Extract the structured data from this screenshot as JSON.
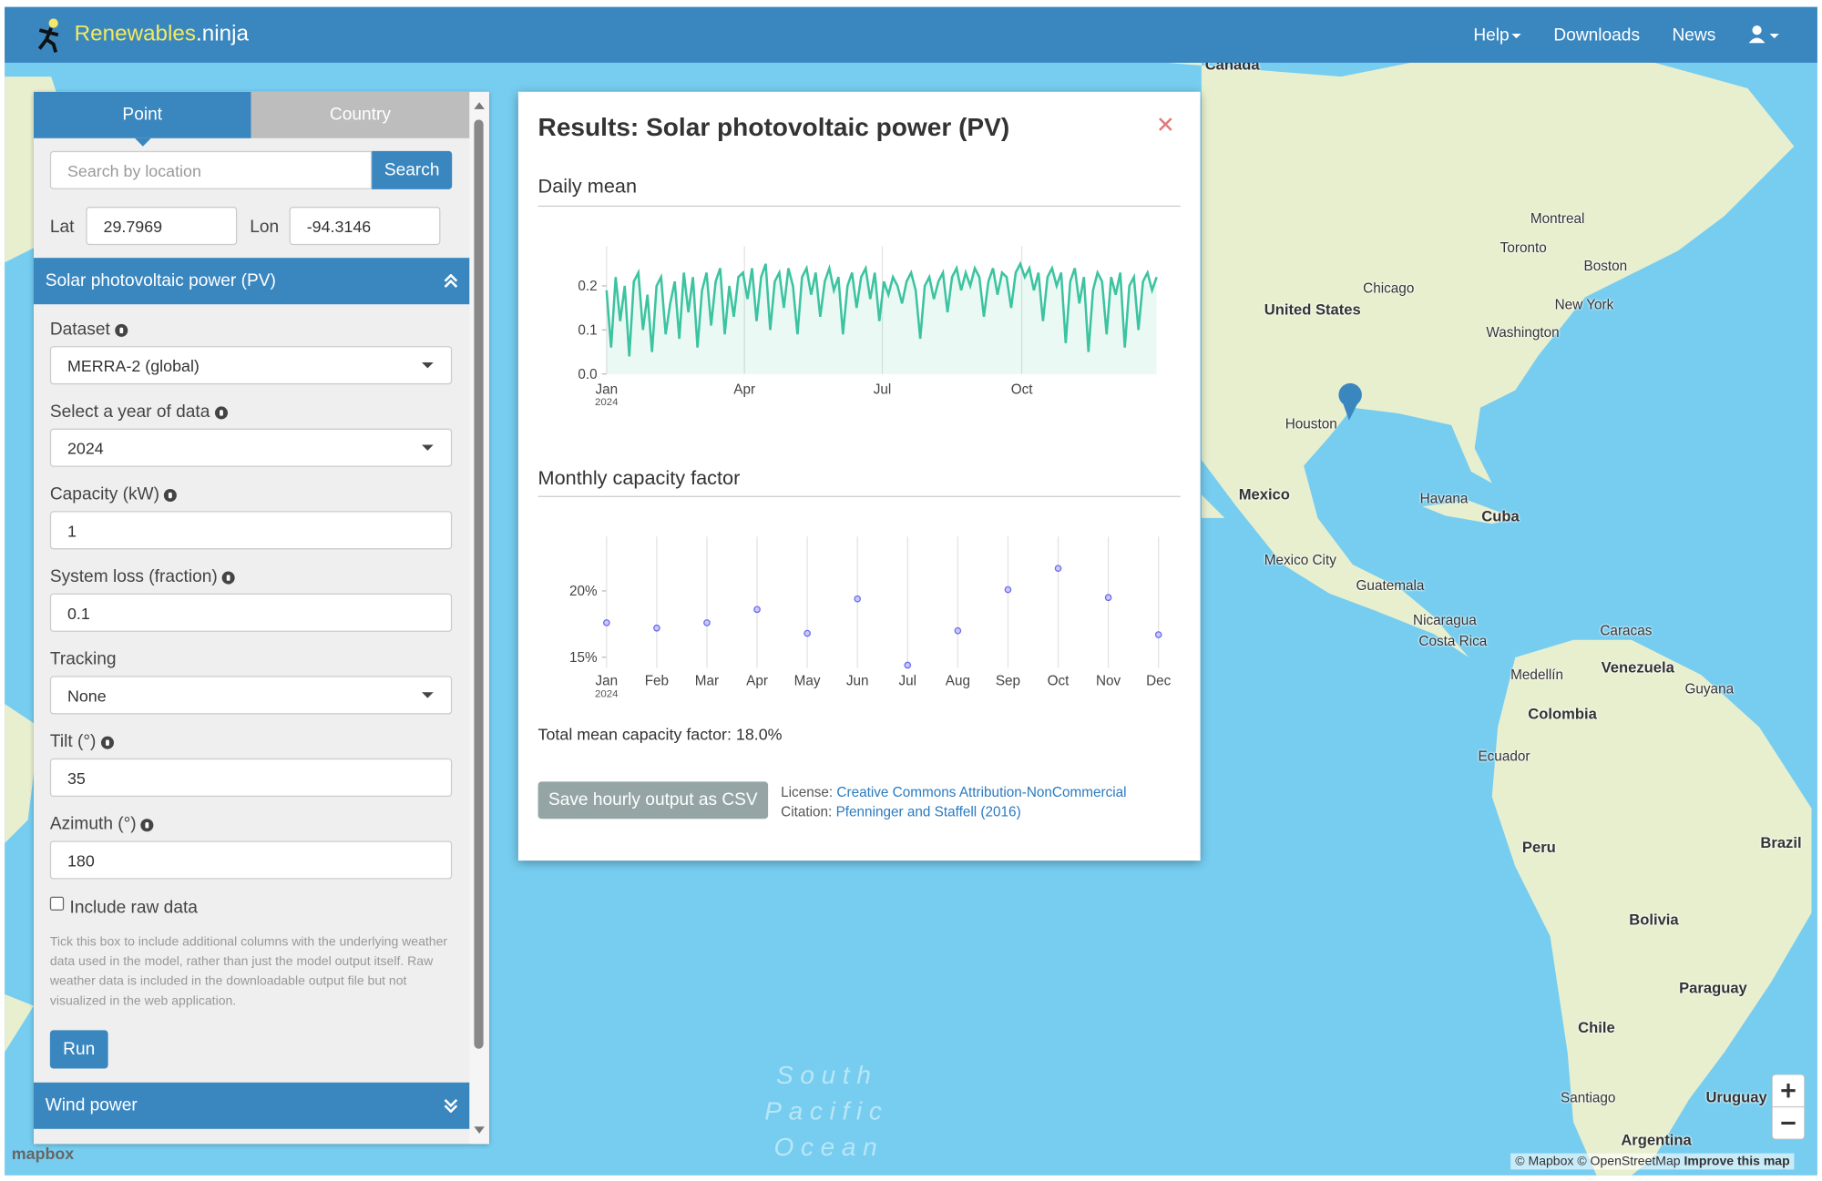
{
  "navbar": {
    "brand_main": "Renewables",
    "brand_suffix": ".ninja",
    "items": [
      "Help",
      "Downloads",
      "News"
    ]
  },
  "sidebar": {
    "tabs": [
      "Point",
      "Country"
    ],
    "search_placeholder": "Search by location",
    "search_button": "Search",
    "lat_label": "Lat",
    "lat": "29.7969",
    "lon_label": "Lon",
    "lon": "-94.3146",
    "section": "Solar photovoltaic power (PV)",
    "fields": [
      {
        "label": "Dataset",
        "value": "MERRA-2 (global)"
      },
      {
        "label": "Select a year of data",
        "value": "2024"
      },
      {
        "label": "Capacity (kW)",
        "value": "1"
      },
      {
        "label": "System loss (fraction)",
        "value": "0.1"
      },
      {
        "label": "Tracking",
        "value": "None"
      },
      {
        "label": "Tilt (°)",
        "value": "35"
      },
      {
        "label": "Azimuth (°)",
        "value": "180"
      }
    ],
    "raw_label": "Include raw data",
    "raw_help": "Tick this box to include additional columns with the underlying weather data used in the model, rather than just the model output itself. Raw weather data is included in the downloadable output file but not visualized in the web application.",
    "run_button": "Run",
    "next_section": "Wind power"
  },
  "results": {
    "title": "Results: Solar photovoltaic power (PV)",
    "total": "Total mean capacity factor: 18.0%",
    "save_button": "Save hourly output as CSV",
    "license_label": "License:",
    "license": "Creative Commons Attribution-NonCommercial",
    "citation_label": "Citation:",
    "citation": "Pfenninger and Staffell (2016)"
  },
  "chart_data": [
    {
      "type": "line",
      "title": "Daily mean",
      "color": "#3cc3a0",
      "x_sublabel": "2024",
      "x": [
        0,
        3,
        6,
        9,
        12,
        15,
        18,
        21,
        24,
        27,
        30,
        33,
        36,
        39,
        42,
        45,
        48,
        51,
        54,
        57,
        60,
        63,
        66,
        69,
        72,
        75,
        78,
        81,
        84,
        87,
        90,
        93,
        96,
        99,
        102,
        105,
        108,
        111,
        114,
        117,
        120,
        123,
        126,
        129,
        132,
        135,
        138,
        141,
        144,
        147,
        150,
        153,
        156,
        159,
        162,
        165,
        168,
        171,
        174,
        177,
        180,
        183,
        186,
        189,
        192,
        195,
        198,
        201,
        204,
        207,
        210,
        213,
        216,
        219,
        222,
        225,
        228,
        231,
        234,
        237,
        240,
        243,
        246,
        249,
        252,
        255,
        258,
        261,
        264,
        267,
        270,
        273,
        276,
        279,
        282,
        285,
        288,
        291,
        294,
        297,
        300,
        303,
        306,
        309,
        312,
        315,
        318,
        321,
        324,
        327,
        330,
        333,
        336,
        339,
        342,
        345,
        348,
        351,
        354,
        357,
        360,
        363
      ],
      "values": [
        0.19,
        0.06,
        0.22,
        0.12,
        0.2,
        0.04,
        0.21,
        0.23,
        0.1,
        0.18,
        0.05,
        0.2,
        0.22,
        0.09,
        0.16,
        0.21,
        0.08,
        0.23,
        0.14,
        0.22,
        0.06,
        0.19,
        0.23,
        0.11,
        0.21,
        0.24,
        0.09,
        0.2,
        0.13,
        0.22,
        0.23,
        0.17,
        0.24,
        0.12,
        0.22,
        0.25,
        0.1,
        0.21,
        0.23,
        0.15,
        0.24,
        0.2,
        0.09,
        0.22,
        0.24,
        0.18,
        0.23,
        0.13,
        0.21,
        0.24,
        0.19,
        0.22,
        0.09,
        0.2,
        0.23,
        0.15,
        0.22,
        0.24,
        0.17,
        0.23,
        0.12,
        0.21,
        0.18,
        0.22,
        0.2,
        0.16,
        0.21,
        0.23,
        0.19,
        0.08,
        0.2,
        0.22,
        0.17,
        0.21,
        0.23,
        0.14,
        0.22,
        0.24,
        0.19,
        0.23,
        0.2,
        0.24,
        0.22,
        0.13,
        0.21,
        0.24,
        0.18,
        0.23,
        0.22,
        0.15,
        0.23,
        0.25,
        0.22,
        0.24,
        0.19,
        0.23,
        0.12,
        0.22,
        0.24,
        0.2,
        0.23,
        0.07,
        0.21,
        0.24,
        0.16,
        0.22,
        0.05,
        0.19,
        0.23,
        0.21,
        0.09,
        0.22,
        0.18,
        0.23,
        0.06,
        0.2,
        0.22,
        0.1,
        0.21,
        0.23,
        0.19,
        0.22
      ],
      "xlim": [
        0,
        365
      ],
      "xticks": [
        {
          "value": 0,
          "label": "Jan"
        },
        {
          "value": 91,
          "label": "Apr"
        },
        {
          "value": 182,
          "label": "Jul"
        },
        {
          "value": 274,
          "label": "Oct"
        }
      ],
      "ylim": [
        0,
        0.29
      ],
      "yticks": [
        {
          "value": 0,
          "label": "0.0"
        },
        0.1,
        0.2
      ]
    },
    {
      "type": "scatter",
      "title": "Monthly capacity factor",
      "color": "#6b6bf0",
      "x_sublabel": "2024",
      "categories": [
        "Jan",
        "Feb",
        "Mar",
        "Apr",
        "May",
        "Jun",
        "Jul",
        "Aug",
        "Sep",
        "Oct",
        "Nov",
        "Dec"
      ],
      "values": [
        17.6,
        17.2,
        17.6,
        18.6,
        16.8,
        19.4,
        14.4,
        17.0,
        20.1,
        21.7,
        19.5,
        16.7
      ],
      "ylim": [
        14.2,
        24.1
      ],
      "yticks": [
        {
          "value": 15,
          "label": "15%"
        },
        {
          "value": 20,
          "label": "20%"
        }
      ]
    }
  ],
  "map": {
    "labels": [
      "Canada",
      "United States",
      "Chicago",
      "Toronto",
      "Montreal",
      "Boston",
      "New York",
      "Washington",
      "Houston",
      "Mexico",
      "Mexico City",
      "Havana",
      "Cuba",
      "Guatemala",
      "Nicaragua",
      "Costa Rica",
      "Caracas",
      "Venezuela",
      "Medellín",
      "Colombia",
      "Guyana",
      "Ecuador",
      "Peru",
      "Brazil",
      "Bolivia",
      "Paraguay",
      "Chile",
      "Santiago",
      "Uruguay",
      "Argentina",
      "South",
      "Pacific",
      "Ocean"
    ],
    "attribution": "© Mapbox © OpenStreetMap",
    "improve": "Improve this map",
    "logo": "mapbox"
  }
}
